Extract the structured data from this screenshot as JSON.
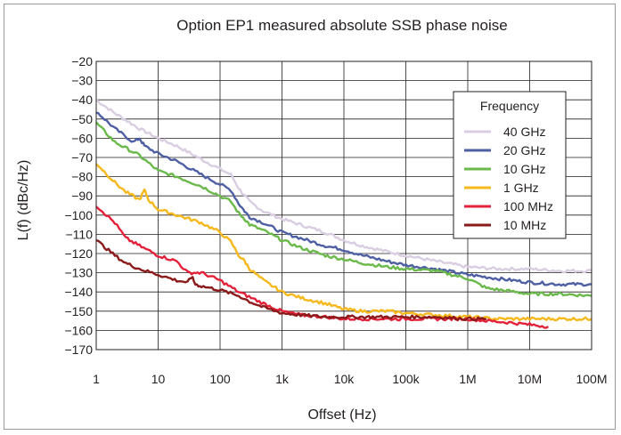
{
  "chart_data": {
    "type": "line",
    "title": "Option EP1 measured absolute SSB phase noise",
    "xlabel": "Offset (Hz)",
    "ylabel": "L(f) (dBc/Hz)",
    "x_scale": "log",
    "xlim": [
      1,
      100000000
    ],
    "ylim": [
      -170,
      -20
    ],
    "grid": true,
    "x_ticks": [
      1,
      10,
      100,
      1000,
      10000,
      100000,
      1000000,
      10000000,
      100000000
    ],
    "x_tick_labels": [
      "1",
      "10",
      "100",
      "1k",
      "10k",
      "100k",
      "1M",
      "10M",
      "100M"
    ],
    "y_ticks": [
      -20,
      -30,
      -40,
      -50,
      -60,
      -70,
      -80,
      -90,
      -100,
      -110,
      -120,
      -130,
      -140,
      -150,
      -160,
      -170
    ],
    "y_tick_labels": [
      "−20",
      "−30",
      "−40",
      "−50",
      "−60",
      "−70",
      "−80",
      "−90",
      "−100",
      "−110",
      "−120",
      "−130",
      "−140",
      "−150",
      "−160",
      "−170"
    ],
    "legend": {
      "title": "Frequency",
      "position": "top-right"
    },
    "series": [
      {
        "name": "40 GHz",
        "color": "#d9cde2",
        "x": [
          1,
          2,
          5,
          10,
          20,
          50,
          100,
          150,
          200,
          250,
          300,
          500,
          1000,
          2000,
          5000,
          10000,
          20000,
          50000,
          100000,
          300000,
          1000000,
          3000000,
          10000000,
          30000000,
          100000000
        ],
        "y": [
          -40,
          -47,
          -55,
          -60,
          -64,
          -71,
          -76,
          -79,
          -86,
          -90,
          -93,
          -98,
          -102,
          -105,
          -109,
          -113,
          -116,
          -119,
          -121,
          -124,
          -127,
          -128,
          -128,
          -129,
          -129
        ]
      },
      {
        "name": "20 GHz",
        "color": "#4e5fa3",
        "x": [
          1,
          2,
          4,
          5,
          6,
          10,
          20,
          50,
          100,
          150,
          200,
          250,
          300,
          500,
          1000,
          2000,
          5000,
          10000,
          20000,
          50000,
          100000,
          300000,
          1000000,
          3000000,
          10000000,
          30000000,
          100000000
        ],
        "y": [
          -46,
          -55,
          -62,
          -60,
          -64,
          -68,
          -72,
          -79,
          -84,
          -87,
          -94,
          -98,
          -101,
          -104,
          -109,
          -112,
          -116,
          -118,
          -121,
          -124,
          -126,
          -128,
          -131,
          -133,
          -135,
          -136,
          -136
        ]
      },
      {
        "name": "10 GHz",
        "color": "#6ab94a",
        "x": [
          1,
          2,
          5,
          10,
          20,
          50,
          100,
          150,
          200,
          250,
          300,
          500,
          1000,
          2000,
          5000,
          10000,
          20000,
          50000,
          100000,
          300000,
          1000000,
          2000000,
          10000000,
          30000000,
          100000000
        ],
        "y": [
          -52,
          -62,
          -69,
          -77,
          -80,
          -85,
          -90,
          -93,
          -99,
          -102,
          -105,
          -108,
          -113,
          -117,
          -121,
          -123,
          -125,
          -127,
          -128,
          -129,
          -133,
          -138,
          -141,
          -141,
          -142
        ]
      },
      {
        "name": "1 GHz",
        "color": "#f6b81a",
        "x": [
          1,
          2,
          3,
          5,
          6,
          7,
          10,
          20,
          50,
          100,
          150,
          200,
          250,
          300,
          500,
          1000,
          2000,
          5000,
          10000,
          20000,
          50000,
          100000,
          300000,
          1000000,
          3000000,
          10000000,
          30000000,
          100000000
        ],
        "y": [
          -73,
          -83,
          -88,
          -92,
          -87,
          -92,
          -97,
          -100,
          -104,
          -109,
          -114,
          -121,
          -124,
          -128,
          -134,
          -140,
          -143,
          -146,
          -149,
          -150,
          -150,
          -151,
          -152,
          -153,
          -154,
          -154,
          -154,
          -154
        ]
      },
      {
        "name": "100 MHz",
        "color": "#e3223a",
        "x": [
          1,
          2,
          3,
          5,
          10,
          20,
          30,
          50,
          100,
          200,
          500,
          1000,
          2000,
          5000,
          10000,
          20000,
          50000,
          100000,
          300000,
          1000000,
          2000000,
          5000000,
          10000000,
          20000000
        ],
        "y": [
          -95,
          -104,
          -112,
          -116,
          -121,
          -124,
          -130,
          -130,
          -134,
          -140,
          -146,
          -150,
          -152,
          -153,
          -154,
          -154,
          -154,
          -154,
          -154,
          -154,
          -155,
          -156,
          -157,
          -158
        ]
      },
      {
        "name": "10 MHz",
        "color": "#8b1a1a",
        "x": [
          1,
          2,
          3,
          5,
          10,
          20,
          30,
          35,
          40,
          50,
          100,
          200,
          300,
          500,
          1000,
          2000,
          5000,
          10000,
          20000,
          50000,
          100000,
          300000,
          1000000,
          2000000
        ],
        "y": [
          -113,
          -121,
          -125,
          -128,
          -131,
          -134,
          -135,
          -132,
          -136,
          -137,
          -139,
          -142,
          -145,
          -148,
          -151,
          -152,
          -153,
          -153,
          -153,
          -153,
          -153,
          -153,
          -154,
          -154
        ]
      }
    ]
  }
}
